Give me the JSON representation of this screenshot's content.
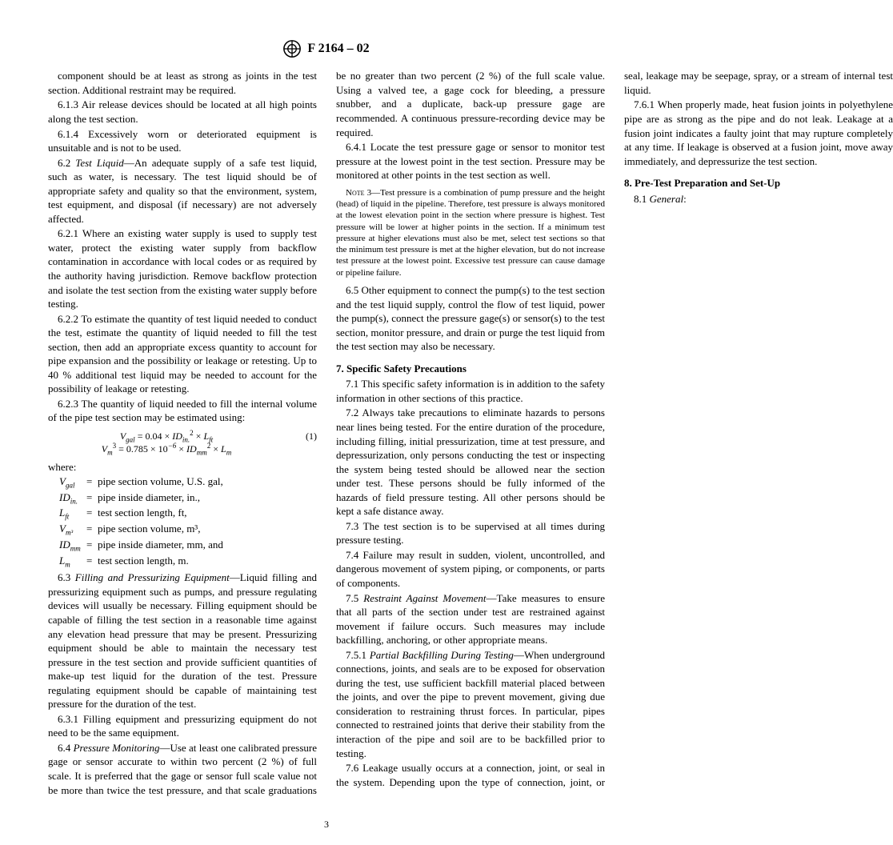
{
  "header": {
    "designation": "F 2164 – 02"
  },
  "col1": {
    "p_lead": "component should be at least as strong as joints in the test section. Additional restraint may be required.",
    "p613": "6.1.3 Air release devices should be located at all high points along the test section.",
    "p614": "6.1.4 Excessively worn or deteriorated equipment is unsuitable and is not to be used.",
    "p62_label": "Test Liquid",
    "p62": "—An adequate supply of a safe test liquid, such as water, is necessary. The test liquid should be of appropriate safety and quality so that the environment, system, test equipment, and disposal (if necessary) are not adversely affected.",
    "p621": "6.2.1 Where an existing water supply is used to supply test water, protect the existing water supply from backflow contamination in accordance with local codes or as required by the authority having jurisdiction. Remove backflow protection and isolate the test section from the existing water supply before testing.",
    "p622": "6.2.2 To estimate the quantity of test liquid needed to conduct the test, estimate the quantity of liquid needed to fill the test section, then add an appropriate excess quantity to account for pipe expansion and the possibility or leakage or retesting. Up to 40 % additional test liquid may be needed to account for the possibility of leakage or retesting.",
    "p623": "6.2.3 The quantity of liquid needed to fill the internal volume of the pipe test section may be estimated using:",
    "eq_num": "(1)",
    "where": "where:",
    "defs": [
      {
        "sym": "V",
        "sub": "gal",
        "txt": "pipe section volume, U.S. gal,"
      },
      {
        "sym": "ID",
        "sub": "in.",
        "txt": "pipe inside diameter, in.,"
      },
      {
        "sym": "L",
        "sub": "ft",
        "txt": "test section length, ft,"
      },
      {
        "sym": "V",
        "sub": "m³",
        "txt": "pipe section volume, m³,"
      },
      {
        "sym": "ID",
        "sub": "mm",
        "txt": "pipe inside diameter, mm, and"
      },
      {
        "sym": "L",
        "sub": "m",
        "txt": "test section length, m."
      }
    ],
    "p63_label": "Filling and Pressurizing Equipment",
    "p63": "—Liquid filling and pressurizing equipment such as pumps, and pressure regulating devices will usually be necessary. Filling equipment should be capable of filling the test section in a reasonable time against any elevation head pressure that may be present. Pressurizing equipment should be able to maintain the necessary test pressure in the test section and provide sufficient quantities of make-up test liquid for the duration of the test. Pressure regulating equipment should be capable of maintaining test pressure for the duration of the test.",
    "p631": "6.3.1 Filling equipment and pressurizing equipment do not need to be the same equipment.",
    "p64_label": "Pressure Monitoring",
    "p64": "—Use at least one calibrated pressure gage or sensor accurate to within two percent (2 %) of full scale. It is preferred that the gage or sensor full scale value not be more than twice the test pressure, and that scale graduations be no greater than two percent (2 %) of the full scale value. Using a valved tee, a gage cock for bleeding, a pressure snubber, and a duplicate, back-up pressure gage are recommended. A continuous pressure-recording device may be required."
  },
  "col2": {
    "p641": "6.4.1 Locate the test pressure gage or sensor to monitor test pressure at the lowest point in the test section. Pressure may be monitored at other points in the test section as well.",
    "note3_label": "Note 3",
    "note3": "—Test pressure is a combination of pump pressure and the height (head) of liquid in the pipeline. Therefore, test pressure is always monitored at the lowest elevation point in the section where pressure is highest. Test pressure will be lower at higher points in the section. If a minimum test pressure at higher elevations must also be met, select test sections so that the minimum test pressure is met at the higher elevation, but do not increase test pressure at the lowest point. Excessive test pressure can cause damage or pipeline failure.",
    "p65": "6.5 Other equipment to connect the pump(s) to the test section and the test liquid supply, control the flow of test liquid, power the pump(s), connect the pressure gage(s) or sensor(s) to the test section, monitor pressure, and drain or purge the test liquid from the test section may also be necessary.",
    "h7": "7.  Specific Safety Precautions",
    "p71": "7.1 This specific safety information is in addition to the safety information in other sections of this practice.",
    "p72": "7.2 Always take precautions to eliminate hazards to persons near lines being tested. For the entire duration of the procedure, including filling, initial pressurization, time at test pressure, and depressurization, only persons conducting the test or inspecting the system being tested should be allowed near the section under test. These persons should be fully informed of the hazards of field pressure testing. All other persons should be kept a safe distance away.",
    "p73": "7.3 The test section is to be supervised at all times during pressure testing.",
    "p74": "7.4 Failure may result in sudden, violent, uncontrolled, and dangerous movement of system piping, or components, or parts of components.",
    "p75_label": "Restraint Against Movement",
    "p75": "—Take measures to ensure that all parts of the section under test are restrained against movement if failure occurs. Such measures may include backfilling, anchoring, or other appropriate means.",
    "p751_label": "Partial Backfilling During Testing",
    "p751": "—When underground connections, joints, and seals are to be exposed for observation during the test, use sufficient backfill material placed between the joints, and over the pipe to prevent movement, giving due consideration to restraining thrust forces. In particular, pipes connected to restrained joints that derive their stability from the interaction of the pipe and soil are to be backfilled prior to testing.",
    "p76": "7.6 Leakage usually occurs at a connection, joint, or seal in the system. Depending upon the type of connection, joint, or seal, leakage may be seepage, spray, or a stream of internal test liquid.",
    "p761": "7.6.1 When properly made, heat fusion joints in polyethylene pipe are as strong as the pipe and do not leak. Leakage at a fusion joint indicates a faulty joint that may rupture completely at any time. If leakage is observed at a fusion joint, move away immediately, and depressurize the test section.",
    "h8": "8.  Pre-Test Preparation and Set-Up",
    "p81_label": "General",
    "p81_num": "8.1 "
  },
  "pagenum": "3"
}
